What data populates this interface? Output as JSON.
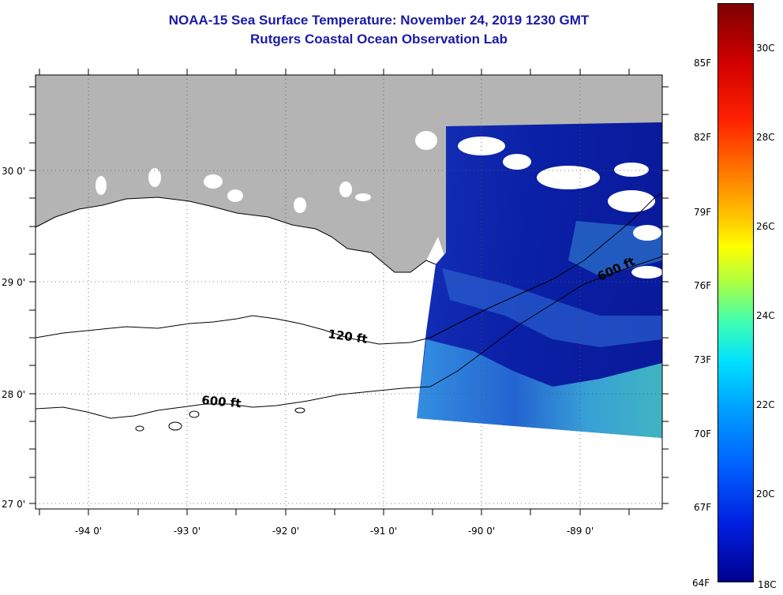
{
  "header": {
    "title": "NOAA-15 Sea Surface Temperature:  November 24, 2019 1230 GMT",
    "subtitle": "Rutgers Coastal Ocean Observation Lab"
  },
  "map": {
    "lat_labels": [
      "30 0'",
      "29 0'",
      "28 0'",
      "27 0'"
    ],
    "lon_labels": [
      "-94 0'",
      "-93 0'",
      "-92 0'",
      "-91 0'",
      "-90 0'",
      "-89 0'"
    ],
    "contour_labels": [
      "120 ft",
      "600 ft",
      "600 ft"
    ],
    "colors": {
      "land": "#b4b4b4",
      "cloud": "#ffffff",
      "water_deep": "#0a1fa8"
    }
  },
  "colorbar": {
    "fahrenheit_labels": [
      "85F",
      "82F",
      "79F",
      "76F",
      "73F",
      "70F",
      "67F",
      "64F"
    ],
    "celsius_labels": [
      "30C",
      "28C",
      "26C",
      "24C",
      "22C",
      "20C",
      "18C"
    ],
    "range_f": [
      64,
      88
    ],
    "range_c": [
      18,
      31
    ]
  }
}
